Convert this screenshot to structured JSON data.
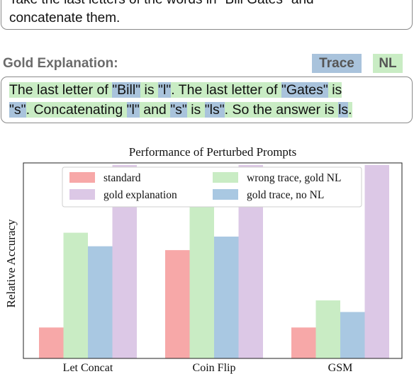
{
  "question": {
    "line1": "Take the last letters of the words in \"Bill Gates\" and",
    "line2": "concatenate them."
  },
  "gold": {
    "title": "Gold Explanation:",
    "tag_trace": "Trace",
    "tag_nl": "NL",
    "line1": [
      {
        "text": "The last letter of ",
        "hl": "nl"
      },
      {
        "text": " ",
        "hl": "none"
      },
      {
        "text": "\"Bill\"",
        "hl": "tr"
      },
      {
        "text": " is ",
        "hl": "nl"
      },
      {
        "text": "\"l\"",
        "hl": "tr"
      },
      {
        "text": ". The last letter of ",
        "hl": "nl"
      },
      {
        "text": "\"Gates\"",
        "hl": "tr"
      },
      {
        "text": " is",
        "hl": "nl"
      }
    ],
    "line2": [
      {
        "text": "\"s\"",
        "hl": "tr"
      },
      {
        "text": ". Concatenating ",
        "hl": "nl"
      },
      {
        "text": "\"l\"",
        "hl": "tr"
      },
      {
        "text": " and ",
        "hl": "nl"
      },
      {
        "text": "\"s\"",
        "hl": "tr"
      },
      {
        "text": " is ",
        "hl": "nl"
      },
      {
        "text": "\"ls\"",
        "hl": "tr"
      },
      {
        "text": ". So the answer is ",
        "hl": "nl"
      },
      {
        "text": "ls",
        "hl": "tr"
      },
      {
        "text": ".",
        "hl": "nl"
      }
    ]
  },
  "chart_data": {
    "type": "bar",
    "title": "Performance of Perturbed Prompts",
    "xlabel": "",
    "ylabel": "Relative Accuracy",
    "categories": [
      "Let Concat",
      "Coin Flip",
      "GSM"
    ],
    "ylim": [
      0,
      1
    ],
    "grid": false,
    "legend_position": "top",
    "series": [
      {
        "name": "standard",
        "color": "#f7a8a8",
        "values": [
          0.16,
          0.56,
          0.16
        ]
      },
      {
        "name": "wrong trace, gold NL",
        "color": "#c9ecc4",
        "values": [
          0.65,
          0.9,
          0.3
        ]
      },
      {
        "name": "gold trace, no NL",
        "color": "#a9c8e2",
        "values": [
          0.58,
          0.63,
          0.24
        ]
      },
      {
        "name": "gold explanation",
        "color": "#dcc8e6",
        "values": [
          1.0,
          1.0,
          1.0
        ]
      }
    ],
    "legend_order": [
      0,
      1,
      3,
      2
    ]
  }
}
